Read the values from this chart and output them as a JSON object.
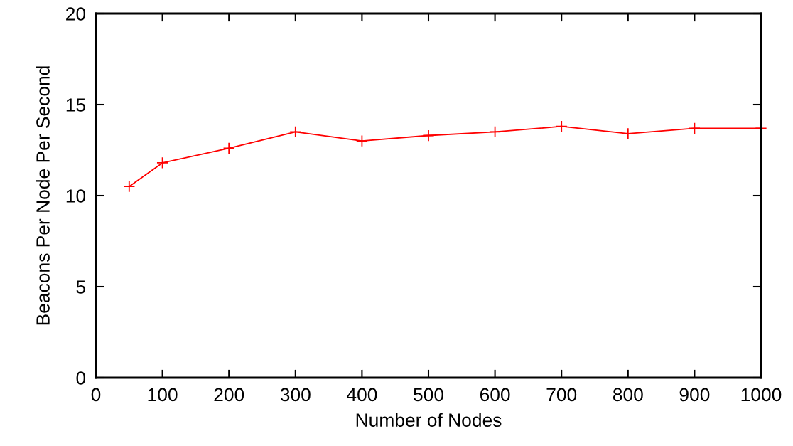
{
  "chart_data": {
    "type": "line",
    "xlabel": "Number of Nodes",
    "ylabel": "Beacons Per Node Per Second",
    "x": [
      50,
      100,
      200,
      300,
      400,
      500,
      600,
      700,
      800,
      900,
      1000
    ],
    "series": [
      {
        "color": "#ff0000",
        "values": [
          10.5,
          11.8,
          12.6,
          13.5,
          13.0,
          13.3,
          13.5,
          13.8,
          13.4,
          13.7,
          13.7
        ]
      }
    ],
    "xlim": [
      0,
      1000
    ],
    "ylim": [
      0,
      20
    ],
    "xticks": [
      0,
      100,
      200,
      300,
      400,
      500,
      600,
      700,
      800,
      900,
      1000
    ],
    "yticks": [
      0,
      5,
      10,
      15,
      20
    ],
    "marker": "cross",
    "line_style": "solid",
    "grid": false,
    "legend": false
  }
}
